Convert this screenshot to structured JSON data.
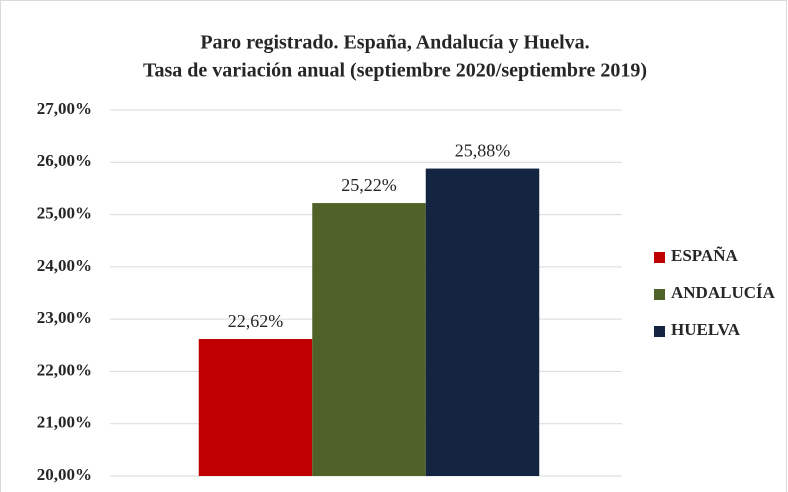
{
  "chart_data": {
    "type": "bar",
    "title": "Paro registrado. España, Andalucía y Huelva.",
    "subtitle": "Tasa de variación anual (septiembre 2020/septiembre 2019)",
    "categories": [
      null
    ],
    "series": [
      {
        "name": "ESPAÑA",
        "color": "#c00000",
        "values": [
          22.62
        ],
        "value_labels": [
          "22,62%"
        ]
      },
      {
        "name": "ANDALUCÍA",
        "color": "#4f6228",
        "values": [
          25.22
        ],
        "value_labels": [
          "25,22%"
        ]
      },
      {
        "name": "HUELVA",
        "color": "#132541",
        "values": [
          25.88
        ],
        "value_labels": [
          "25,88%"
        ]
      }
    ],
    "ylim": [
      20,
      27
    ],
    "yticks": [
      {
        "value": 20,
        "label": "20,00%"
      },
      {
        "value": 21,
        "label": "21,00%"
      },
      {
        "value": 22,
        "label": "22,00%"
      },
      {
        "value": 23,
        "label": "23,00%"
      },
      {
        "value": 24,
        "label": "24,00%"
      },
      {
        "value": 25,
        "label": "25,00%"
      },
      {
        "value": 26,
        "label": "26,00%"
      },
      {
        "value": 27,
        "label": "27,00%"
      }
    ],
    "grid": true,
    "legend": "right"
  }
}
